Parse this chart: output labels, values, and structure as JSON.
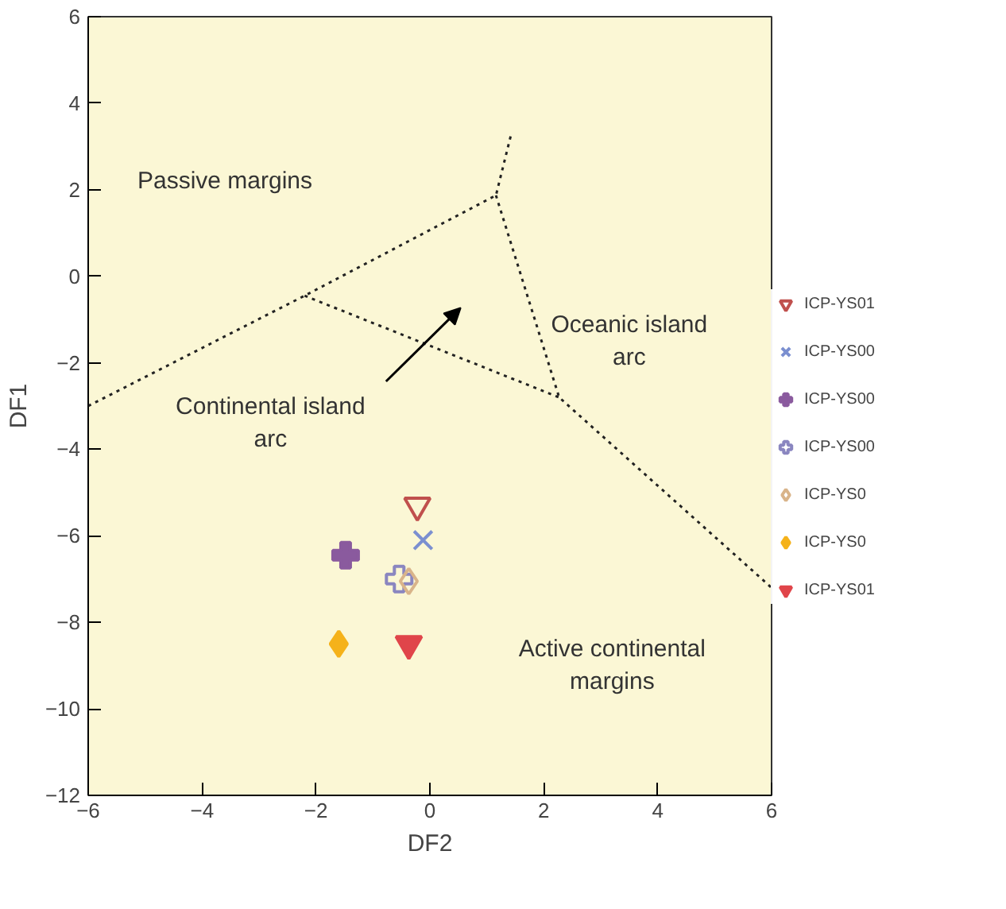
{
  "chart_data": {
    "type": "scatter",
    "xlabel": "DF2",
    "ylabel": "DF1",
    "xlim": [
      -6,
      6
    ],
    "xticks": [
      -6,
      -4,
      -2,
      0,
      2,
      4,
      6
    ],
    "ylim": [
      -12,
      6
    ],
    "yticks": [
      -12,
      -10,
      -8,
      -6,
      -4,
      -2,
      0,
      2,
      4,
      6
    ],
    "grid": false,
    "legend": "right",
    "series": [
      {
        "name": "ICP-YS01",
        "color": "#c0504d",
        "marker": "triangle_down_open",
        "x": [
          -0.22
        ],
        "values": [
          -5.3
        ]
      },
      {
        "name": "ICP-YS00",
        "color": "#7b8fd0",
        "marker": "x",
        "x": [
          -0.12
        ],
        "values": [
          -6.1
        ]
      },
      {
        "name": "ICP-YS00",
        "color": "#8a5a9e",
        "marker": "cross",
        "x": [
          -1.48
        ],
        "values": [
          -6.45
        ]
      },
      {
        "name": "ICP-YS00",
        "color": "#8a86c0",
        "marker": "cross_open",
        "x": [
          -0.54
        ],
        "values": [
          -7.0
        ]
      },
      {
        "name": "ICP-YS0",
        "color": "#d9b48a",
        "marker": "diamond_open",
        "x": [
          -0.37
        ],
        "values": [
          -7.05
        ]
      },
      {
        "name": "ICP-YS0",
        "color": "#f5b21a",
        "marker": "diamond",
        "x": [
          -1.6
        ],
        "values": [
          -8.5
        ]
      },
      {
        "name": "ICP-YS01",
        "color": "#e0454a",
        "marker": "triangle_down",
        "x": [
          -0.37
        ],
        "values": [
          -8.5
        ]
      },
      {
        "type": "line",
        "line_style": "dotted",
        "color": "#222222",
        "x": [
          -6,
          -2.2,
          1.16,
          1.43
        ],
        "values": [
          -3,
          -0.45,
          1.87,
          3.3
        ]
      },
      {
        "type": "line",
        "line_style": "dotted",
        "color": "#222222",
        "x": [
          -2.2,
          2.27
        ],
        "values": [
          -0.45,
          -2.8
        ]
      },
      {
        "type": "line",
        "line_style": "dotted",
        "color": "#222222",
        "x": [
          1.16,
          2.27,
          6
        ],
        "values": [
          1.87,
          -2.8,
          -7.2
        ]
      }
    ],
    "annotations": [
      "Passive margins",
      "Oceanic island\narc",
      "Continental island\narc",
      "Active continental\nmargins"
    ]
  }
}
